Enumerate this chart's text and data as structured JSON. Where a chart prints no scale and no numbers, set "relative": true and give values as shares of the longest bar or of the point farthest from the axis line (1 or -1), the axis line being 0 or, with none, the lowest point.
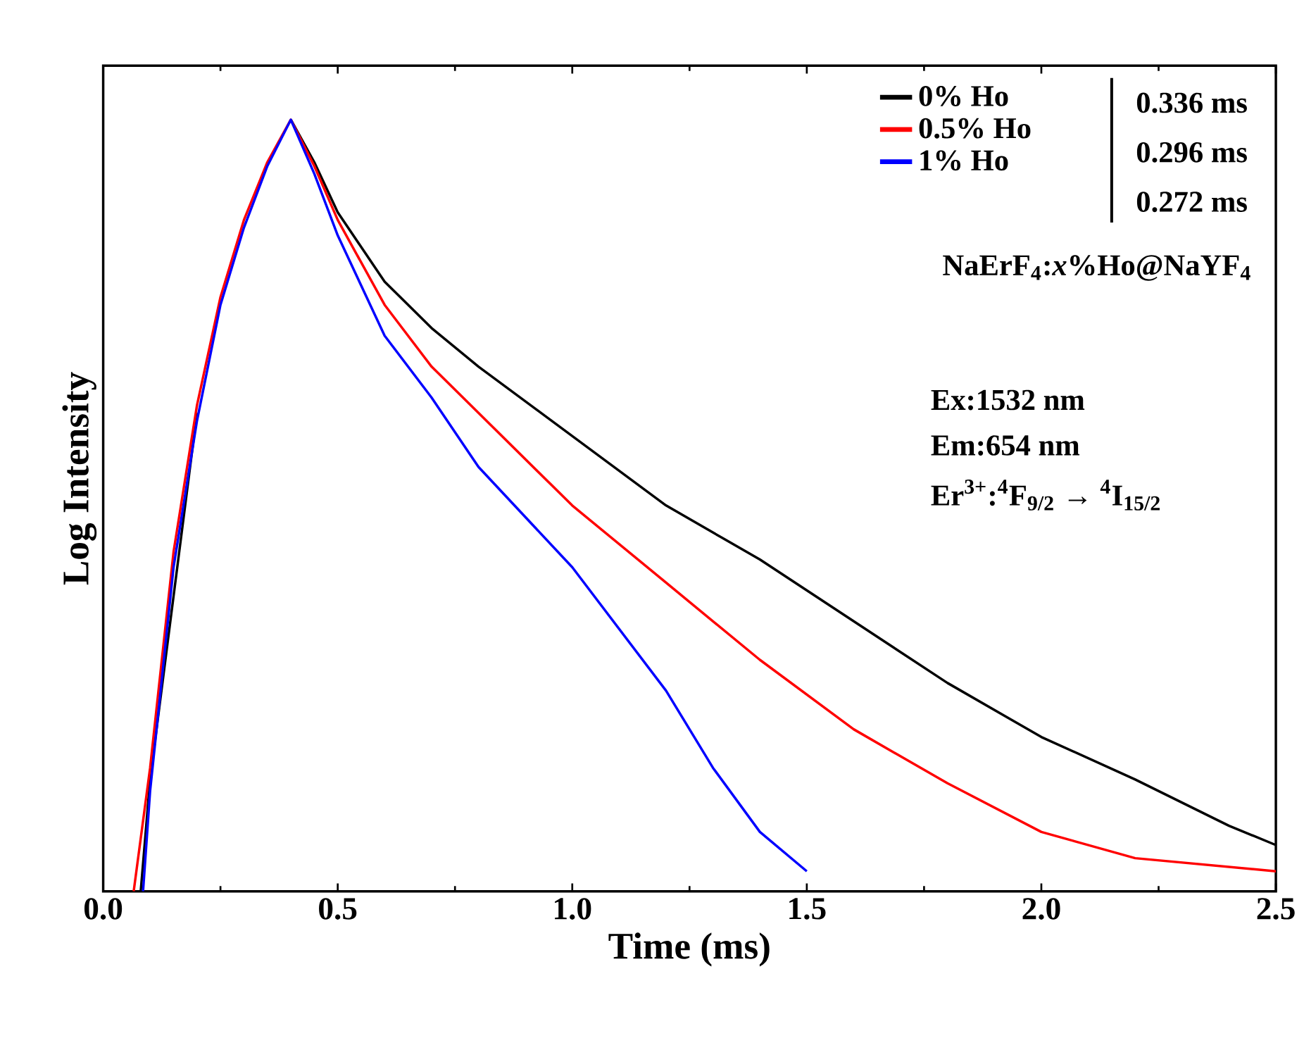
{
  "chart_data": {
    "type": "line",
    "relative": true,
    "xlabel": "Time (ms)",
    "ylabel": "Log Intensity",
    "xlim": [
      0,
      2.5
    ],
    "xticks": [
      {
        "value": 0,
        "label": "0.0"
      },
      0.5,
      {
        "value": 1,
        "label": "1.0"
      },
      1.5,
      {
        "value": 2,
        "label": "2.0"
      },
      2.5
    ],
    "legend": "top right",
    "grid": false,
    "series": [
      {
        "name": "0% Ho",
        "color": "#000000",
        "x": [
          0.08,
          0.1,
          0.2,
          0.3,
          0.4,
          0.45,
          0.5,
          0.6,
          0.7,
          0.8,
          1.0,
          1.2,
          1.4,
          1.6,
          1.8,
          2.0,
          2.2,
          2.4,
          2.5
        ],
        "values": [
          0,
          0.145,
          0.62,
          null,
          1,
          0.945,
          0.88,
          0.79,
          0.73,
          0.68,
          0.59,
          0.5,
          0.43,
          0.35,
          0.27,
          0.2,
          0.145,
          0.085,
          0.06
        ]
      },
      {
        "name": "0.5% Ho",
        "color": "#ff0000",
        "x": [
          0.065,
          0.1,
          0.15,
          0.2,
          0.25,
          0.3,
          0.35,
          0.4,
          0.45,
          0.5,
          0.6,
          0.7,
          0.8,
          1.0,
          1.2,
          1.4,
          1.6,
          1.8,
          2.0,
          2.2,
          2.5
        ],
        "values": [
          0,
          0.16,
          0.44,
          0.63,
          0.77,
          0.87,
          0.945,
          1,
          0.94,
          0.87,
          0.76,
          0.68,
          0.62,
          0.5,
          0.4,
          0.3,
          0.21,
          0.14,
          0.077,
          0.043,
          0.026
        ]
      },
      {
        "name": "1% Ho",
        "color": "#0000ff",
        "x": [
          0.085,
          0.1,
          0.15,
          0.2,
          0.25,
          0.3,
          0.35,
          0.4,
          0.45,
          0.5,
          0.6,
          0.7,
          0.8,
          1.0,
          1.2,
          1.3,
          1.4,
          1.5
        ],
        "values": [
          0,
          0.13,
          0.42,
          0.61,
          0.76,
          0.86,
          0.94,
          1,
          0.93,
          0.85,
          0.72,
          0.64,
          0.55,
          0.42,
          0.26,
          0.16,
          0.077,
          0.026
        ]
      }
    ],
    "annotations": [
      "0.336 ms",
      "0.296 ms",
      "0.272 ms",
      "NaErF$_{4}$:*x*%Ho@NaYF$_{4}$",
      "Ex:1532 nm",
      "Em:654 nm",
      "Er$^{3+}$:$^{4}$F$_{9/2}$ → $^{4}$I$_{15/2}$"
    ]
  }
}
